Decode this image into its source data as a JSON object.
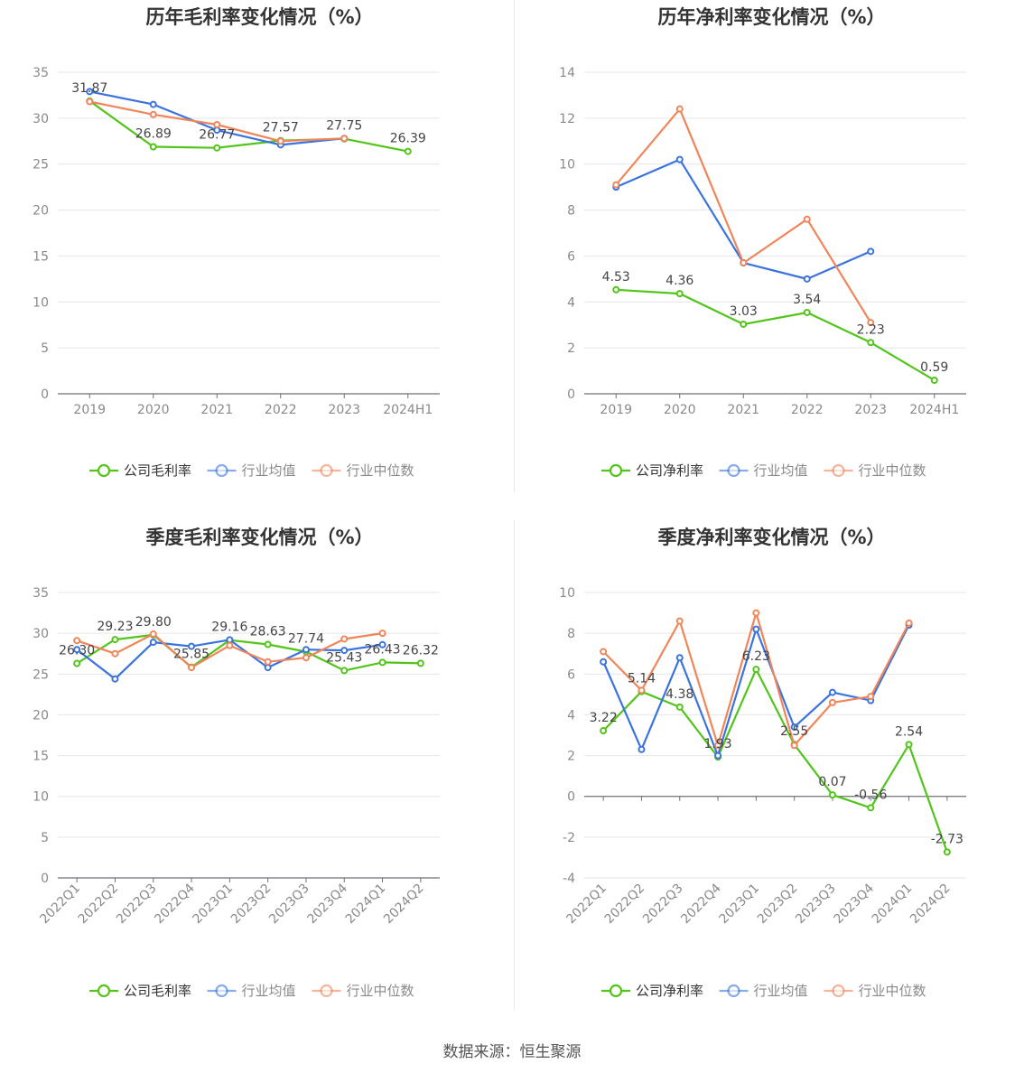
{
  "source": "数据来源：恒生聚源",
  "colors": {
    "company": "#52c41a",
    "avg": "#3b73de",
    "median": "#f0855a",
    "axis": "#8a8a8a",
    "grid": "#e4e4ec"
  },
  "chart_data": [
    {
      "type": "line",
      "title": "历年毛利率变化情况（%）",
      "categories": [
        "2019",
        "2020",
        "2021",
        "2022",
        "2023",
        "2024H1"
      ],
      "ylim": [
        0,
        35
      ],
      "yticks": [
        0,
        5,
        10,
        15,
        20,
        25,
        30,
        35
      ],
      "grid": true,
      "legend_position": "bottom",
      "series": [
        {
          "name": "公司毛利率",
          "values": [
            31.87,
            26.89,
            26.77,
            27.57,
            27.75,
            26.39
          ],
          "labels": [
            "31.87",
            "26.89",
            "26.77",
            "27.57",
            "27.75",
            "26.39"
          ]
        },
        {
          "name": "行业均值",
          "values": [
            32.9,
            31.5,
            28.7,
            27.1,
            27.8,
            null
          ]
        },
        {
          "name": "行业中位数",
          "values": [
            31.8,
            30.4,
            29.3,
            27.5,
            27.8,
            null
          ]
        }
      ]
    },
    {
      "type": "line",
      "title": "历年净利率变化情况（%）",
      "categories": [
        "2019",
        "2020",
        "2021",
        "2022",
        "2023",
        "2024H1"
      ],
      "ylim": [
        0,
        14
      ],
      "yticks": [
        0,
        2,
        4,
        6,
        8,
        10,
        12,
        14
      ],
      "grid": true,
      "legend_position": "bottom",
      "series": [
        {
          "name": "公司净利率",
          "values": [
            4.53,
            4.36,
            3.03,
            3.54,
            2.23,
            0.59
          ],
          "labels": [
            "4.53",
            "4.36",
            "3.03",
            "3.54",
            "2.23",
            "0.59"
          ]
        },
        {
          "name": "行业均值",
          "values": [
            9.0,
            10.2,
            5.7,
            5.0,
            6.2,
            null
          ]
        },
        {
          "name": "行业中位数",
          "values": [
            9.1,
            12.4,
            5.7,
            7.6,
            3.1,
            null
          ]
        }
      ]
    },
    {
      "type": "line",
      "title": "季度毛利率变化情况（%）",
      "categories": [
        "2022Q1",
        "2022Q2",
        "2022Q3",
        "2022Q4",
        "2023Q1",
        "2023Q2",
        "2023Q3",
        "2023Q4",
        "2024Q1",
        "2024Q2"
      ],
      "ylim": [
        0,
        35
      ],
      "yticks": [
        0,
        5,
        10,
        15,
        20,
        25,
        30,
        35
      ],
      "grid": true,
      "legend_position": "bottom",
      "series": [
        {
          "name": "公司毛利率",
          "values": [
            26.3,
            29.23,
            29.8,
            25.85,
            29.16,
            28.63,
            27.74,
            25.43,
            26.43,
            26.32
          ],
          "labels": [
            "26.30",
            "29.23",
            "29.80",
            "25.85",
            "29.16",
            "28.63",
            "27.74",
            "25.43",
            "26.43",
            "26.32"
          ]
        },
        {
          "name": "行业均值",
          "values": [
            28.0,
            24.4,
            28.9,
            28.4,
            29.2,
            25.8,
            28.0,
            27.9,
            28.6,
            null
          ]
        },
        {
          "name": "行业中位数",
          "values": [
            29.1,
            27.5,
            29.9,
            25.8,
            28.5,
            26.5,
            27.0,
            29.3,
            30.0,
            null
          ]
        }
      ]
    },
    {
      "type": "line",
      "title": "季度净利率变化情况（%）",
      "categories": [
        "2022Q1",
        "2022Q2",
        "2022Q3",
        "2022Q4",
        "2023Q1",
        "2023Q2",
        "2023Q3",
        "2023Q4",
        "2024Q1",
        "2024Q2"
      ],
      "ylim": [
        -4,
        10
      ],
      "yticks": [
        -4,
        -2,
        0,
        2,
        4,
        6,
        8,
        10
      ],
      "grid": true,
      "legend_position": "bottom",
      "series": [
        {
          "name": "公司净利率",
          "values": [
            3.22,
            5.14,
            4.38,
            1.93,
            6.23,
            2.55,
            0.07,
            -0.56,
            2.54,
            -2.73
          ],
          "labels": [
            "3.22",
            "5.14",
            "4.38",
            "1.93",
            "6.23",
            "2.55",
            "0.07",
            "-0.56",
            "2.54",
            "-2.73"
          ]
        },
        {
          "name": "行业均值",
          "values": [
            6.6,
            2.3,
            6.8,
            2.0,
            8.2,
            3.4,
            5.1,
            4.7,
            8.4,
            null
          ]
        },
        {
          "name": "行业中位数",
          "values": [
            7.1,
            5.2,
            8.6,
            2.5,
            9.0,
            2.5,
            4.6,
            4.9,
            8.5,
            null
          ]
        }
      ]
    }
  ]
}
